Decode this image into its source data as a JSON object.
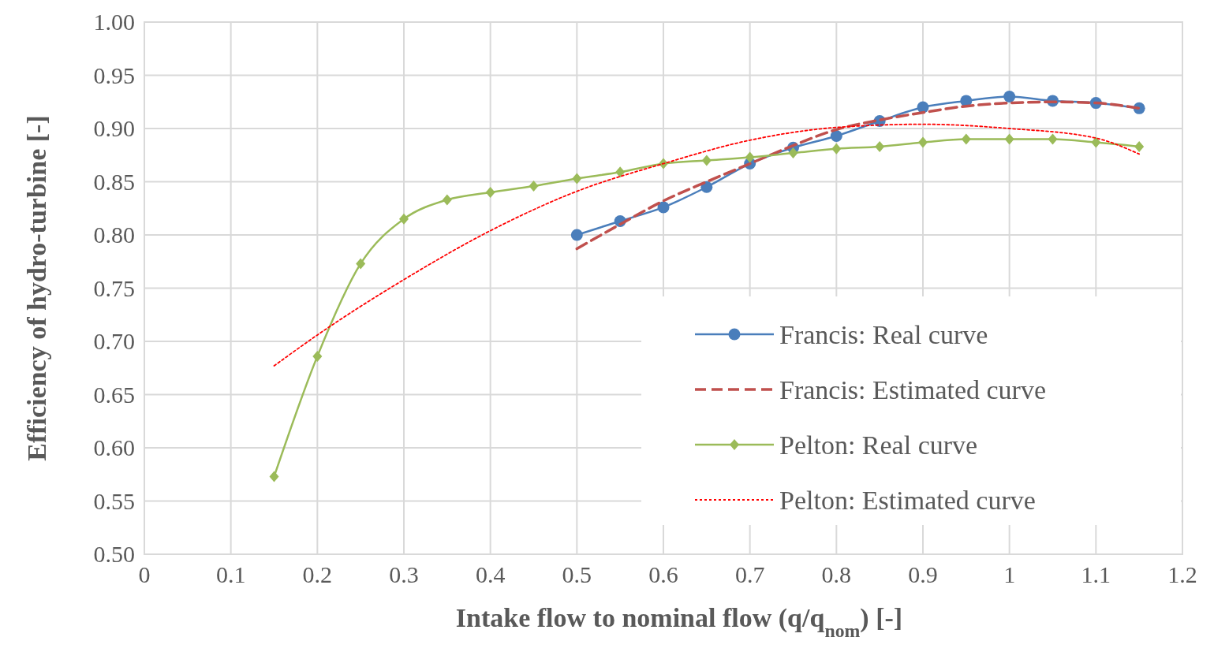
{
  "chart_data": {
    "type": "line",
    "xlabel": "Intake flow to nominal flow (q/q$_{nom}$) [-]",
    "ylabel": "Efficiency of hydro-turbine [-]",
    "xlim": [
      0,
      1.2
    ],
    "xticks": [
      0,
      0.1,
      0.2,
      0.3,
      0.4,
      0.5,
      0.6,
      0.7,
      0.8,
      0.9,
      1,
      1.1,
      1.2
    ],
    "ylim": [
      0.5,
      1.0
    ],
    "yticks": [
      {
        "value": 0.5,
        "label": "0.50"
      },
      {
        "value": 0.55,
        "label": "0.55"
      },
      {
        "value": 0.6,
        "label": "0.60"
      },
      {
        "value": 0.65,
        "label": "0.65"
      },
      {
        "value": 0.7,
        "label": "0.70"
      },
      {
        "value": 0.75,
        "label": "0.75"
      },
      {
        "value": 0.8,
        "label": "0.80"
      },
      {
        "value": 0.85,
        "label": "0.85"
      },
      {
        "value": 0.9,
        "label": "0.90"
      },
      {
        "value": 0.95,
        "label": "0.95"
      },
      {
        "value": 1.0,
        "label": "1.00"
      }
    ],
    "grid": true,
    "legend": "bottom right",
    "series": [
      {
        "name": "Francis: Real curve",
        "color": "#4a7ebb",
        "marker": "circle",
        "line_style": "solid",
        "x": [
          0.5,
          0.55,
          0.6,
          0.65,
          0.7,
          0.75,
          0.8,
          0.85,
          0.9,
          0.95,
          1.0,
          1.05,
          1.1,
          1.15
        ],
        "values": [
          0.8,
          0.813,
          0.826,
          0.845,
          0.867,
          0.882,
          0.893,
          0.907,
          0.92,
          0.926,
          0.93,
          0.926,
          0.924,
          0.919
        ]
      },
      {
        "name": "Francis: Estimated curve",
        "color": "#c0504d",
        "marker": "none",
        "line_style": "dashed",
        "x": [
          0.5,
          0.55,
          0.6,
          0.65,
          0.7,
          0.75,
          0.8,
          0.85,
          0.9,
          0.95,
          1.0,
          1.05,
          1.1,
          1.15
        ],
        "values": [
          0.787,
          0.81,
          0.832,
          0.85,
          0.867,
          0.884,
          0.899,
          0.908,
          0.915,
          0.921,
          0.924,
          0.925,
          0.924,
          0.919
        ]
      },
      {
        "name": "Pelton: Real curve",
        "color": "#9bbb59",
        "marker": "diamond",
        "line_style": "solid",
        "x": [
          0.15,
          0.2,
          0.25,
          0.3,
          0.35,
          0.4,
          0.45,
          0.5,
          0.55,
          0.6,
          0.65,
          0.7,
          0.75,
          0.8,
          0.85,
          0.9,
          0.95,
          1.0,
          1.05,
          1.1,
          1.15
        ],
        "values": [
          0.573,
          0.686,
          0.773,
          0.815,
          0.833,
          0.84,
          0.846,
          0.853,
          0.859,
          0.867,
          0.87,
          0.873,
          0.877,
          0.881,
          0.883,
          0.887,
          0.89,
          0.89,
          0.89,
          0.887,
          0.883
        ]
      },
      {
        "name": "Pelton: Estimated curve",
        "color": "#ff0000",
        "marker": "none",
        "line_style": "dotted",
        "x": [
          0.15,
          0.2,
          0.3,
          0.4,
          0.5,
          0.6,
          0.7,
          0.8,
          0.9,
          1.0,
          1.1,
          1.15
        ],
        "values": [
          0.677,
          0.706,
          0.758,
          0.804,
          0.841,
          0.867,
          0.889,
          0.901,
          0.904,
          0.9,
          0.891,
          0.876
        ]
      }
    ]
  }
}
